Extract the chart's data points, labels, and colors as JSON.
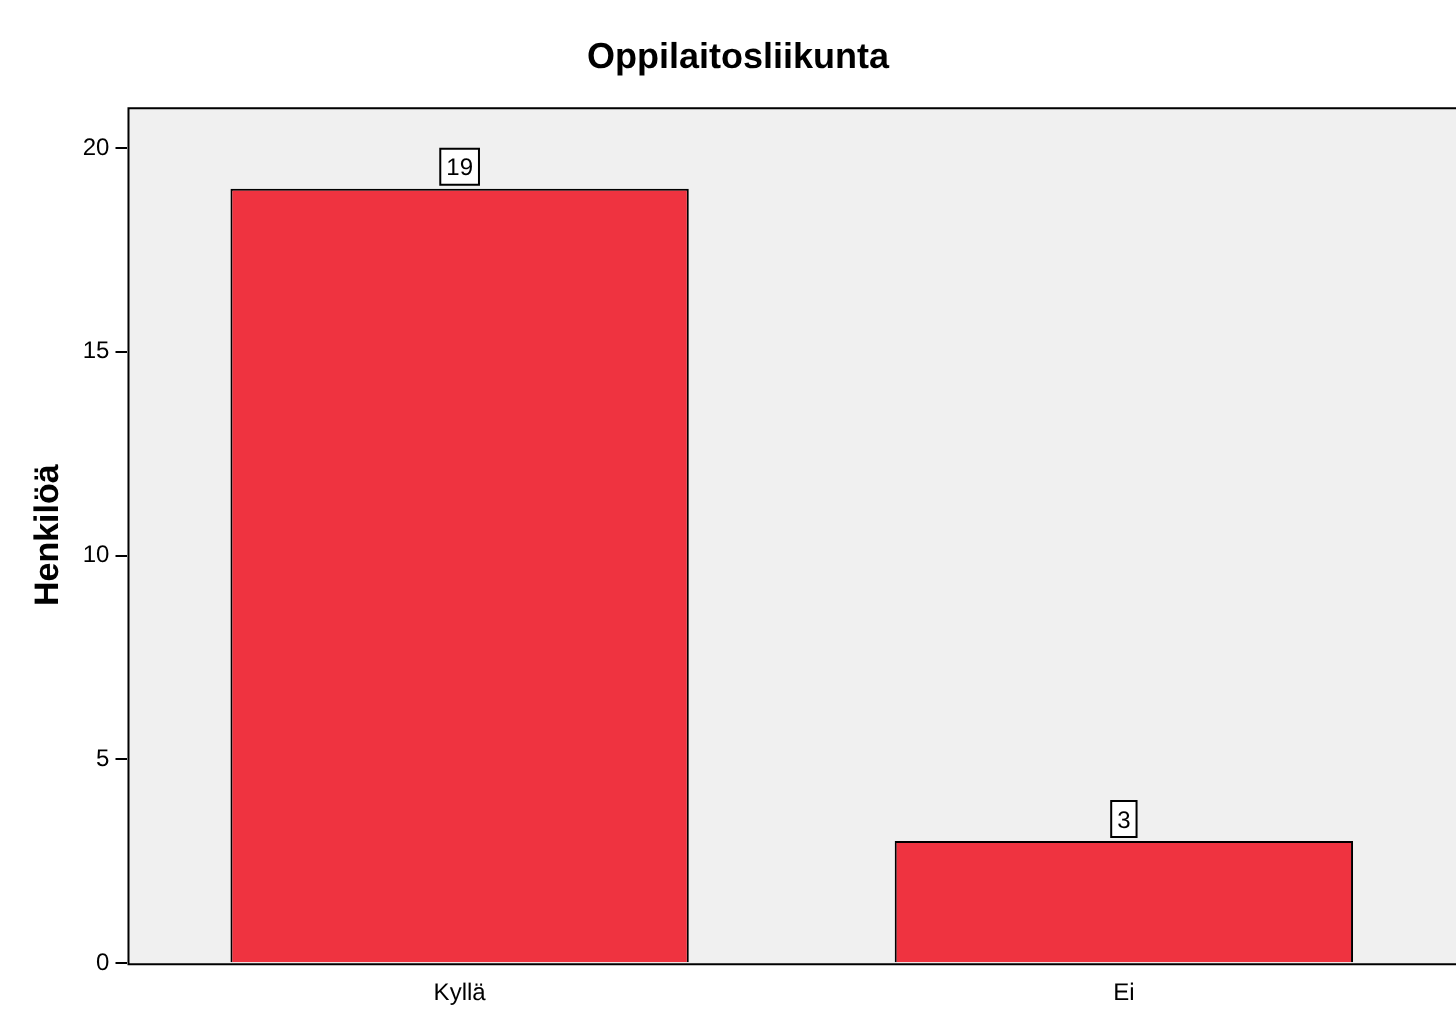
{
  "chart_data": {
    "type": "bar",
    "title": "Oppilaitosliikunta",
    "ylabel": "Henkilöä",
    "categories": [
      "Kyllä",
      "Ei"
    ],
    "values": [
      19,
      3
    ],
    "color": "#ef3340",
    "ylim": [
      0,
      21
    ],
    "yticks": [
      0,
      5,
      10,
      15,
      20
    ],
    "grid": false,
    "data_labels": true
  }
}
